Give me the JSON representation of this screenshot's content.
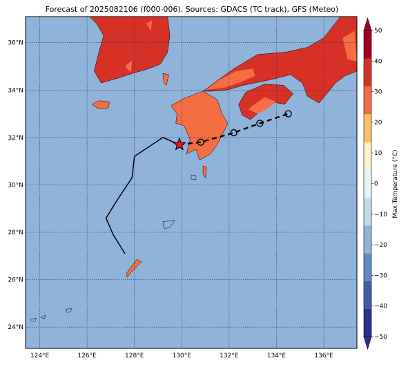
{
  "title": "Forecast of 2025082106 (f000-006), Sources: GDACS (TC track), GFS (Meteo)",
  "map": {
    "lon_range": [
      123.4,
      137.4
    ],
    "lat_range": [
      23.1,
      37.1
    ],
    "ocean_color": "#8fb3d9",
    "gridlines": true,
    "lon_ticks": [
      {
        "value": 124,
        "label": "124°E"
      },
      {
        "value": 126,
        "label": "126°E"
      },
      {
        "value": 128,
        "label": "128°E"
      },
      {
        "value": 130,
        "label": "130°E"
      },
      {
        "value": 132,
        "label": "132°E"
      },
      {
        "value": 134,
        "label": "134°E"
      },
      {
        "value": 136,
        "label": "136°E"
      }
    ],
    "lat_ticks": [
      {
        "value": 24,
        "label": "24°N"
      },
      {
        "value": 26,
        "label": "26°N"
      },
      {
        "value": 28,
        "label": "28°N"
      },
      {
        "value": 30,
        "label": "30°N"
      },
      {
        "value": 32,
        "label": "32°N"
      },
      {
        "value": 34,
        "label": "34°N"
      },
      {
        "value": 36,
        "label": "36°N"
      }
    ]
  },
  "colorbar": {
    "label": "Max Temperature (°C)",
    "min": -50,
    "max": 50,
    "tick_values": [
      -50,
      -40,
      -30,
      -20,
      -10,
      0,
      10,
      20,
      30,
      40,
      50
    ],
    "tick_labels": [
      "−50",
      "−40",
      "−30",
      "−20",
      "−10",
      "0",
      "10",
      "20",
      "30",
      "40",
      "50"
    ],
    "colors": [
      "#2c2f8f",
      "#3f5fa8",
      "#5f8cc2",
      "#8fb3d9",
      "#bfdcec",
      "#e8f4f8",
      "#fdf2c7",
      "#fdbf6f",
      "#f46d43",
      "#d73027",
      "#a50026"
    ]
  },
  "track": {
    "past_color": "#000000",
    "past": [
      [
        127.6,
        27.1
      ],
      [
        127.1,
        27.9
      ],
      [
        126.8,
        28.6
      ],
      [
        127.3,
        29.4
      ],
      [
        127.9,
        30.3
      ],
      [
        128.0,
        31.2
      ],
      [
        129.2,
        32.0
      ],
      [
        129.9,
        31.7
      ]
    ],
    "forecast": [
      [
        129.9,
        31.7
      ],
      [
        130.8,
        31.8
      ],
      [
        132.2,
        32.2
      ],
      [
        133.3,
        32.6
      ],
      [
        134.5,
        33.0
      ]
    ],
    "current_position": {
      "lon": 129.9,
      "lat": 31.7
    },
    "forecast_points": [
      {
        "lon": 130.8,
        "lat": 31.8
      },
      {
        "lon": 132.2,
        "lat": 32.2
      },
      {
        "lon": 133.3,
        "lat": 32.6
      },
      {
        "lon": 134.5,
        "lat": 33.0
      }
    ]
  },
  "land": [
    {
      "name": "korea",
      "fill": "#d73027",
      "points": [
        [
          126.1,
          37.1
        ],
        [
          129.4,
          37.1
        ],
        [
          129.5,
          36.3
        ],
        [
          129.4,
          35.6
        ],
        [
          129.1,
          35.1
        ],
        [
          128.6,
          34.9
        ],
        [
          127.9,
          34.7
        ],
        [
          127.3,
          34.5
        ],
        [
          126.6,
          34.3
        ],
        [
          126.3,
          34.8
        ],
        [
          126.5,
          35.6
        ],
        [
          126.7,
          36.3
        ],
        [
          126.4,
          36.8
        ]
      ]
    },
    {
      "name": "jeju",
      "fill": "#f46d43",
      "points": [
        [
          126.2,
          33.4
        ],
        [
          126.5,
          33.55
        ],
        [
          126.95,
          33.5
        ],
        [
          126.9,
          33.25
        ],
        [
          126.5,
          33.2
        ]
      ]
    },
    {
      "name": "tsushima",
      "fill": "#f46d43",
      "points": [
        [
          129.2,
          34.7
        ],
        [
          129.45,
          34.65
        ],
        [
          129.35,
          34.2
        ],
        [
          129.25,
          34.3
        ]
      ]
    },
    {
      "name": "honshu",
      "fill": "#d73027",
      "points": [
        [
          130.9,
          33.95
        ],
        [
          131.5,
          34.4
        ],
        [
          132.2,
          34.9
        ],
        [
          133.2,
          35.5
        ],
        [
          134.4,
          35.6
        ],
        [
          135.3,
          35.8
        ],
        [
          136.0,
          36.2
        ],
        [
          136.7,
          37.1
        ],
        [
          137.4,
          37.1
        ],
        [
          137.4,
          34.8
        ],
        [
          136.9,
          34.6
        ],
        [
          136.5,
          34.3
        ],
        [
          135.8,
          33.45
        ],
        [
          135.3,
          33.75
        ],
        [
          135.1,
          34.3
        ],
        [
          134.6,
          34.65
        ],
        [
          133.8,
          34.45
        ],
        [
          132.6,
          34.2
        ],
        [
          131.9,
          34.0
        ],
        [
          131.2,
          33.95
        ]
      ]
    },
    {
      "name": "shikoku",
      "fill": "#d73027",
      "points": [
        [
          132.4,
          33.4
        ],
        [
          132.7,
          33.9
        ],
        [
          133.5,
          34.25
        ],
        [
          134.3,
          34.2
        ],
        [
          134.7,
          33.85
        ],
        [
          134.35,
          33.4
        ],
        [
          133.8,
          33.5
        ],
        [
          133.25,
          33.05
        ],
        [
          132.9,
          32.75
        ],
        [
          132.55,
          32.95
        ]
      ]
    },
    {
      "name": "kyushu",
      "fill": "#f46d43",
      "points": [
        [
          129.55,
          33.35
        ],
        [
          130.1,
          33.65
        ],
        [
          130.9,
          33.95
        ],
        [
          131.5,
          33.6
        ],
        [
          131.7,
          33.0
        ],
        [
          131.95,
          32.6
        ],
        [
          131.5,
          31.7
        ],
        [
          131.2,
          31.3
        ],
        [
          130.75,
          31.05
        ],
        [
          130.6,
          31.5
        ],
        [
          130.2,
          31.3
        ],
        [
          130.35,
          31.9
        ],
        [
          130.1,
          32.5
        ],
        [
          129.75,
          32.6
        ],
        [
          129.8,
          33.0
        ]
      ]
    },
    {
      "name": "tanegashima",
      "fill": "#f46d43",
      "points": [
        [
          130.9,
          30.8
        ],
        [
          131.05,
          30.75
        ],
        [
          131.0,
          30.3
        ],
        [
          130.9,
          30.45
        ]
      ]
    },
    {
      "name": "yakushima",
      "fill": "#8fb3d9",
      "points": [
        [
          130.4,
          30.42
        ],
        [
          130.6,
          30.4
        ],
        [
          130.6,
          30.22
        ],
        [
          130.4,
          30.25
        ]
      ]
    },
    {
      "name": "amami",
      "fill": "#8fb3d9",
      "points": [
        [
          129.2,
          28.45
        ],
        [
          129.7,
          28.5
        ],
        [
          129.5,
          28.2
        ],
        [
          129.25,
          28.15
        ]
      ]
    },
    {
      "name": "okinawa",
      "fill": "#f46d43",
      "points": [
        [
          127.65,
          26.25
        ],
        [
          128.1,
          26.85
        ],
        [
          128.3,
          26.75
        ],
        [
          127.85,
          26.3
        ],
        [
          127.7,
          26.1
        ]
      ]
    },
    {
      "name": "miyako",
      "fill": "#8fb3d9",
      "points": [
        [
          125.1,
          24.75
        ],
        [
          125.35,
          24.78
        ],
        [
          125.3,
          24.65
        ],
        [
          125.15,
          24.62
        ]
      ]
    },
    {
      "name": "ishigaki",
      "fill": "#8fb3d9",
      "points": [
        [
          124.05,
          24.4
        ],
        [
          124.25,
          24.5
        ],
        [
          124.2,
          24.35
        ]
      ]
    },
    {
      "name": "iriomote",
      "fill": "#8fb3d9",
      "points": [
        [
          123.6,
          24.32
        ],
        [
          123.85,
          24.38
        ],
        [
          123.8,
          24.24
        ],
        [
          123.65,
          24.25
        ]
      ]
    }
  ],
  "warm_patches": [
    {
      "name": "korea-warm-1",
      "fill": "#f46d43",
      "points": [
        [
          127.6,
          35.0
        ],
        [
          127.9,
          35.25
        ],
        [
          127.85,
          34.75
        ]
      ]
    },
    {
      "name": "korea-warm-2",
      "fill": "#f46d43",
      "points": [
        [
          128.5,
          36.8
        ],
        [
          128.75,
          36.95
        ],
        [
          128.7,
          36.5
        ]
      ]
    },
    {
      "name": "honshu-warm-1",
      "fill": "#f46d43",
      "points": [
        [
          131.0,
          34.0
        ],
        [
          131.6,
          34.45
        ],
        [
          132.3,
          34.8
        ],
        [
          133.0,
          34.9
        ],
        [
          133.1,
          34.6
        ],
        [
          132.4,
          34.3
        ],
        [
          131.8,
          34.1
        ]
      ]
    },
    {
      "name": "honshu-warm-2",
      "fill": "#f46d43",
      "points": [
        [
          136.8,
          36.2
        ],
        [
          137.3,
          36.5
        ],
        [
          137.4,
          35.2
        ],
        [
          137.0,
          35.3
        ]
      ]
    },
    {
      "name": "shikoku-warm",
      "fill": "#f46d43",
      "points": [
        [
          132.8,
          33.2
        ],
        [
          133.5,
          33.7
        ],
        [
          134.0,
          33.5
        ],
        [
          133.6,
          33.2
        ],
        [
          133.2,
          33.0
        ]
      ]
    }
  ]
}
